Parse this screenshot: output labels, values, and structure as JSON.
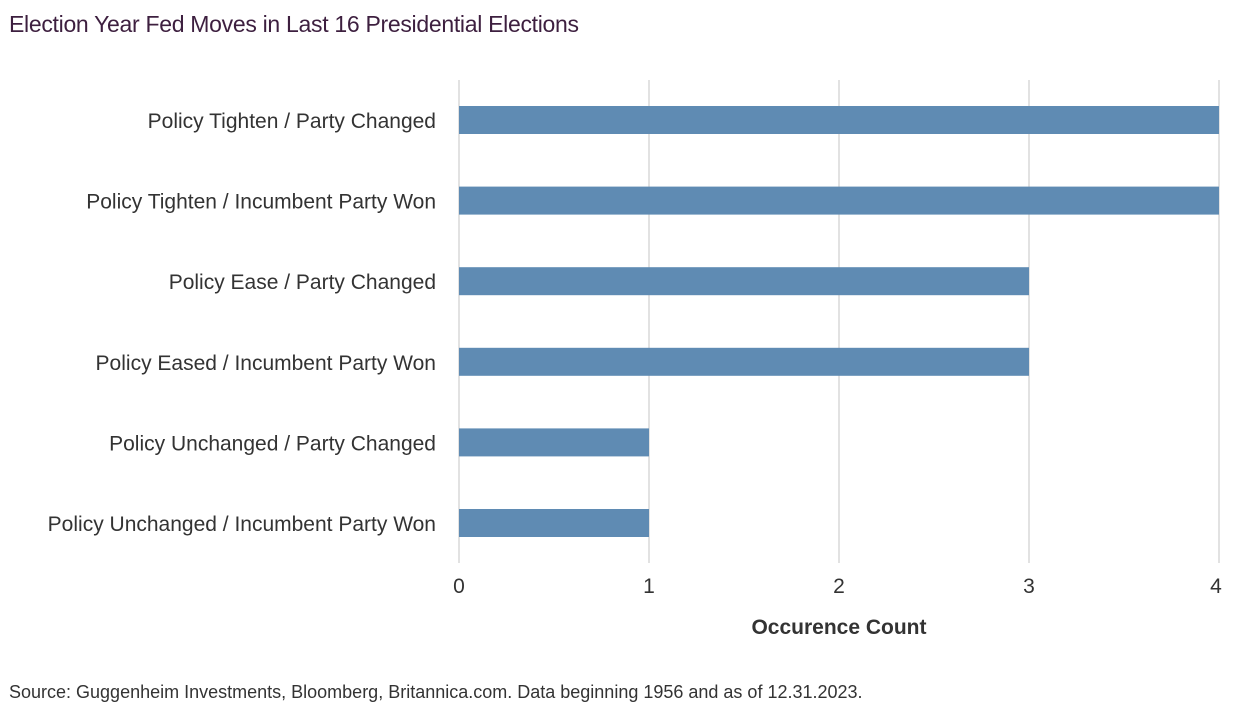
{
  "title": "Election Year Fed Moves in Last 16 Presidential Elections",
  "source": "Source: Guggenheim Investments, Bloomberg, Britannica.com. Data beginning 1956 and as of 12.31.2023.",
  "colors": {
    "bar": "#5f8bb3",
    "grid": "#d9d9d9",
    "label": "#333333",
    "title": "#3d1f3f"
  },
  "chart_data": {
    "type": "bar",
    "orientation": "horizontal",
    "categories": [
      "Policy Tighten / Party Changed",
      "Policy Tighten / Incumbent Party Won",
      "Policy Ease / Party Changed",
      "Policy Eased / Incumbent Party Won",
      "Policy Unchanged / Party Changed",
      "Policy Unchanged / Incumbent Party Won"
    ],
    "values": [
      4,
      4,
      3,
      3,
      1,
      1
    ],
    "xlabel": "Occurence Count",
    "ylabel": "",
    "xlim": [
      0,
      4
    ],
    "xticks": [
      "0",
      "1",
      "2",
      "3",
      "4"
    ],
    "grid": true,
    "legend": "none"
  }
}
